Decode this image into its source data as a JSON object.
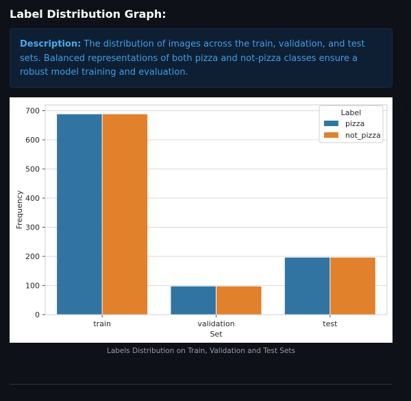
{
  "page": {
    "title": "Label Distribution Graph:",
    "description_label": "Description:",
    "description_text": "The distribution of images across the train, validation, and test sets. Balanced representations of both pizza and not-pizza classes ensure a robust model training and evaluation.",
    "caption": "Labels Distribution on Train, Validation and Test Sets"
  },
  "colors": {
    "background": "#0e1117",
    "pizza": "#3274a1",
    "not_pizza": "#e1812c",
    "info_text": "#3f9ee8"
  },
  "chart_data": {
    "type": "bar",
    "categories": [
      "train",
      "validation",
      "test"
    ],
    "series": [
      {
        "name": "pizza",
        "values": [
          688,
          97,
          196
        ]
      },
      {
        "name": "not_pizza",
        "values": [
          688,
          97,
          196
        ]
      }
    ],
    "title": "",
    "xlabel": "Set",
    "ylabel": "Frequency",
    "ylim": [
      0,
      720
    ],
    "yticks": [
      0,
      100,
      200,
      300,
      400,
      500,
      600,
      700
    ],
    "grid": true,
    "legend": {
      "title": "Label",
      "placement": "top-right",
      "entries": [
        "pizza",
        "not_pizza"
      ]
    }
  }
}
